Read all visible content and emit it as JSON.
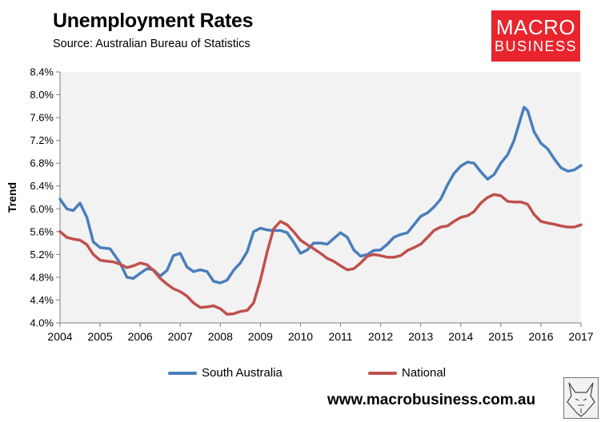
{
  "header": {
    "title": "Unemployment Rates",
    "source": "Source: Australian Bureau of Statistics"
  },
  "logo": {
    "line1": "MACRO",
    "line2": "BUSINESS",
    "color": "#e8242d"
  },
  "footer": {
    "website": "www.macrobusiness.com.au",
    "mascot_icon": "fox-sketch-icon"
  },
  "chart_data": {
    "type": "line",
    "title": "Unemployment Rates",
    "xlabel": "",
    "ylabel": "Trend",
    "xlim": [
      2004,
      2017
    ],
    "ylim": [
      4.0,
      8.4
    ],
    "y_ticks": [
      "4.0%",
      "4.4%",
      "4.8%",
      "5.2%",
      "5.6%",
      "6.0%",
      "6.4%",
      "6.8%",
      "7.2%",
      "7.6%",
      "8.0%",
      "8.4%"
    ],
    "x_ticks": [
      "2004",
      "2005",
      "2006",
      "2007",
      "2008",
      "2009",
      "2010",
      "2011",
      "2012",
      "2013",
      "2014",
      "2015",
      "2016",
      "2017"
    ],
    "plot_background": "#f2f2f2",
    "gridlines": false,
    "legend_position": "bottom",
    "series": [
      {
        "name": "South Australia",
        "color": "#4a7ebb",
        "points": [
          [
            2004.0,
            6.17
          ],
          [
            2004.17,
            6.0
          ],
          [
            2004.33,
            5.97
          ],
          [
            2004.5,
            6.1
          ],
          [
            2004.67,
            5.85
          ],
          [
            2004.83,
            5.42
          ],
          [
            2005.0,
            5.32
          ],
          [
            2005.25,
            5.3
          ],
          [
            2005.5,
            5.05
          ],
          [
            2005.67,
            4.8
          ],
          [
            2005.83,
            4.78
          ],
          [
            2006.0,
            4.87
          ],
          [
            2006.17,
            4.95
          ],
          [
            2006.33,
            4.93
          ],
          [
            2006.5,
            4.82
          ],
          [
            2006.67,
            4.92
          ],
          [
            2006.83,
            5.18
          ],
          [
            2007.0,
            5.22
          ],
          [
            2007.17,
            4.98
          ],
          [
            2007.33,
            4.9
          ],
          [
            2007.5,
            4.93
          ],
          [
            2007.67,
            4.9
          ],
          [
            2007.83,
            4.73
          ],
          [
            2008.0,
            4.7
          ],
          [
            2008.17,
            4.75
          ],
          [
            2008.33,
            4.92
          ],
          [
            2008.5,
            5.05
          ],
          [
            2008.67,
            5.25
          ],
          [
            2008.83,
            5.6
          ],
          [
            2009.0,
            5.66
          ],
          [
            2009.17,
            5.63
          ],
          [
            2009.33,
            5.62
          ],
          [
            2009.5,
            5.62
          ],
          [
            2009.67,
            5.58
          ],
          [
            2009.83,
            5.42
          ],
          [
            2010.0,
            5.22
          ],
          [
            2010.17,
            5.28
          ],
          [
            2010.33,
            5.4
          ],
          [
            2010.5,
            5.4
          ],
          [
            2010.67,
            5.38
          ],
          [
            2010.83,
            5.48
          ],
          [
            2011.0,
            5.58
          ],
          [
            2011.17,
            5.5
          ],
          [
            2011.33,
            5.28
          ],
          [
            2011.5,
            5.17
          ],
          [
            2011.67,
            5.2
          ],
          [
            2011.83,
            5.27
          ],
          [
            2012.0,
            5.28
          ],
          [
            2012.17,
            5.38
          ],
          [
            2012.33,
            5.5
          ],
          [
            2012.5,
            5.55
          ],
          [
            2012.67,
            5.58
          ],
          [
            2012.83,
            5.72
          ],
          [
            2013.0,
            5.87
          ],
          [
            2013.17,
            5.93
          ],
          [
            2013.33,
            6.03
          ],
          [
            2013.5,
            6.17
          ],
          [
            2013.67,
            6.42
          ],
          [
            2013.83,
            6.62
          ],
          [
            2014.0,
            6.75
          ],
          [
            2014.17,
            6.82
          ],
          [
            2014.33,
            6.8
          ],
          [
            2014.5,
            6.65
          ],
          [
            2014.67,
            6.52
          ],
          [
            2014.83,
            6.6
          ],
          [
            2015.0,
            6.8
          ],
          [
            2015.17,
            6.95
          ],
          [
            2015.33,
            7.2
          ],
          [
            2015.5,
            7.6
          ],
          [
            2015.58,
            7.78
          ],
          [
            2015.67,
            7.72
          ],
          [
            2015.83,
            7.35
          ],
          [
            2016.0,
            7.15
          ],
          [
            2016.17,
            7.05
          ],
          [
            2016.33,
            6.88
          ],
          [
            2016.5,
            6.72
          ],
          [
            2016.67,
            6.66
          ],
          [
            2016.83,
            6.68
          ],
          [
            2017.0,
            6.76
          ]
        ]
      },
      {
        "name": "National",
        "color": "#c0504d",
        "points": [
          [
            2004.0,
            5.6
          ],
          [
            2004.17,
            5.5
          ],
          [
            2004.33,
            5.47
          ],
          [
            2004.5,
            5.45
          ],
          [
            2004.67,
            5.37
          ],
          [
            2004.83,
            5.2
          ],
          [
            2005.0,
            5.1
          ],
          [
            2005.17,
            5.08
          ],
          [
            2005.33,
            5.07
          ],
          [
            2005.5,
            5.03
          ],
          [
            2005.67,
            4.97
          ],
          [
            2005.83,
            5.0
          ],
          [
            2006.0,
            5.05
          ],
          [
            2006.17,
            5.02
          ],
          [
            2006.33,
            4.92
          ],
          [
            2006.5,
            4.78
          ],
          [
            2006.67,
            4.68
          ],
          [
            2006.83,
            4.6
          ],
          [
            2007.0,
            4.55
          ],
          [
            2007.17,
            4.47
          ],
          [
            2007.33,
            4.35
          ],
          [
            2007.5,
            4.27
          ],
          [
            2007.67,
            4.28
          ],
          [
            2007.83,
            4.3
          ],
          [
            2008.0,
            4.25
          ],
          [
            2008.17,
            4.15
          ],
          [
            2008.33,
            4.16
          ],
          [
            2008.5,
            4.2
          ],
          [
            2008.67,
            4.22
          ],
          [
            2008.83,
            4.35
          ],
          [
            2009.0,
            4.75
          ],
          [
            2009.17,
            5.25
          ],
          [
            2009.33,
            5.65
          ],
          [
            2009.5,
            5.78
          ],
          [
            2009.67,
            5.72
          ],
          [
            2009.83,
            5.6
          ],
          [
            2010.0,
            5.45
          ],
          [
            2010.17,
            5.37
          ],
          [
            2010.33,
            5.3
          ],
          [
            2010.5,
            5.22
          ],
          [
            2010.67,
            5.13
          ],
          [
            2010.83,
            5.08
          ],
          [
            2011.0,
            5.0
          ],
          [
            2011.17,
            4.93
          ],
          [
            2011.33,
            4.95
          ],
          [
            2011.5,
            5.05
          ],
          [
            2011.67,
            5.17
          ],
          [
            2011.83,
            5.2
          ],
          [
            2012.0,
            5.18
          ],
          [
            2012.17,
            5.15
          ],
          [
            2012.33,
            5.15
          ],
          [
            2012.5,
            5.18
          ],
          [
            2012.67,
            5.27
          ],
          [
            2012.83,
            5.32
          ],
          [
            2013.0,
            5.38
          ],
          [
            2013.17,
            5.5
          ],
          [
            2013.33,
            5.62
          ],
          [
            2013.5,
            5.68
          ],
          [
            2013.67,
            5.7
          ],
          [
            2013.83,
            5.78
          ],
          [
            2014.0,
            5.85
          ],
          [
            2014.17,
            5.88
          ],
          [
            2014.33,
            5.95
          ],
          [
            2014.5,
            6.1
          ],
          [
            2014.67,
            6.2
          ],
          [
            2014.83,
            6.25
          ],
          [
            2015.0,
            6.23
          ],
          [
            2015.17,
            6.13
          ],
          [
            2015.33,
            6.12
          ],
          [
            2015.5,
            6.12
          ],
          [
            2015.67,
            6.08
          ],
          [
            2015.83,
            5.9
          ],
          [
            2016.0,
            5.78
          ],
          [
            2016.17,
            5.75
          ],
          [
            2016.33,
            5.73
          ],
          [
            2016.5,
            5.7
          ],
          [
            2016.67,
            5.68
          ],
          [
            2016.83,
            5.68
          ],
          [
            2017.0,
            5.72
          ]
        ]
      }
    ]
  }
}
